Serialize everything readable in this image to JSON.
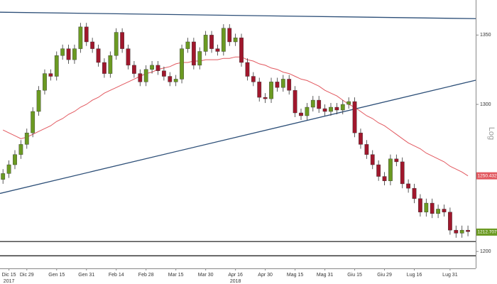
{
  "chart_data": {
    "type": "candlestick",
    "log_scale": true,
    "ylim": [
      1189,
      1376
    ],
    "yticks": [
      1200,
      1300,
      1350
    ],
    "axis_label": "Log",
    "up_color": "#6b9a22",
    "down_color": "#a0172c",
    "categories": [
      null,
      "Dic 15",
      null,
      null,
      "Dic 29",
      null,
      null,
      null,
      null,
      "Gen 15",
      null,
      null,
      null,
      null,
      "Gen 31",
      null,
      null,
      null,
      null,
      "Feb 14",
      null,
      null,
      null,
      null,
      "Feb 28",
      null,
      null,
      null,
      null,
      "Mar 15",
      null,
      null,
      null,
      null,
      "Mar 30",
      null,
      null,
      null,
      null,
      "Apr 16",
      null,
      null,
      null,
      null,
      "Apr 30",
      null,
      null,
      null,
      null,
      "Mag 15",
      null,
      null,
      null,
      null,
      "Mag 31",
      null,
      null,
      null,
      null,
      "Giu 15",
      null,
      null,
      null,
      null,
      "Giu 29",
      null,
      null,
      null,
      null,
      "Lug 16",
      null,
      null,
      null,
      null,
      null,
      "Lug 31",
      null,
      null,
      null
    ],
    "years": [
      null,
      "2017",
      null,
      null,
      null,
      null,
      null,
      null,
      null,
      null,
      null,
      null,
      null,
      null,
      null,
      null,
      null,
      null,
      null,
      null,
      null,
      null,
      null,
      null,
      null,
      null,
      null,
      null,
      null,
      null,
      null,
      null,
      null,
      null,
      null,
      null,
      null,
      null,
      null,
      "2018",
      null,
      null,
      null,
      null,
      null,
      null,
      null,
      null,
      null,
      null,
      null,
      null,
      null,
      null,
      null,
      null,
      null,
      null,
      null,
      null,
      null,
      null,
      null,
      null,
      null,
      null,
      null,
      null,
      null,
      null,
      null,
      null,
      null,
      null,
      null,
      null,
      null,
      null,
      null
    ],
    "open": [
      1248,
      1252,
      1258,
      1265,
      1272,
      1280,
      1295,
      1310,
      1322,
      1320,
      1335,
      1340,
      1332,
      1340,
      1356,
      1345,
      1340,
      1330,
      1322,
      1335,
      1352,
      1340,
      1328,
      1322,
      1316,
      1325,
      1328,
      1324,
      1320,
      1316,
      1318,
      1340,
      1345,
      1328,
      1338,
      1350,
      1340,
      1338,
      1355,
      1345,
      1348,
      1330,
      1320,
      1316,
      1305,
      1304,
      1316,
      1312,
      1318,
      1310,
      1294,
      1292,
      1298,
      1303,
      1297,
      1295,
      1298,
      1296,
      1300,
      1302,
      1280,
      1272,
      1265,
      1258,
      1250,
      1247,
      1262,
      1260,
      1245,
      1242,
      1235,
      1226,
      1232,
      1225,
      1228,
      1226,
      1214,
      1212,
      1214
    ],
    "high": [
      1255,
      1261,
      1268,
      1275,
      1283,
      1298,
      1313,
      1325,
      1325,
      1338,
      1343,
      1343,
      1343,
      1359,
      1359,
      1348,
      1343,
      1333,
      1338,
      1355,
      1355,
      1343,
      1331,
      1325,
      1328,
      1331,
      1331,
      1327,
      1323,
      1321,
      1343,
      1348,
      1348,
      1341,
      1353,
      1353,
      1343,
      1358,
      1358,
      1351,
      1351,
      1333,
      1323,
      1319,
      1308,
      1319,
      1319,
      1321,
      1321,
      1313,
      1297,
      1301,
      1306,
      1306,
      1300,
      1301,
      1301,
      1303,
      1305,
      1305,
      1283,
      1275,
      1268,
      1261,
      1253,
      1265,
      1265,
      1263,
      1248,
      1245,
      1238,
      1235,
      1235,
      1231,
      1231,
      1229,
      1217,
      1217,
      1217
    ],
    "low": [
      1245,
      1249,
      1255,
      1262,
      1269,
      1277,
      1292,
      1307,
      1317,
      1317,
      1332,
      1329,
      1329,
      1337,
      1342,
      1337,
      1327,
      1319,
      1319,
      1332,
      1337,
      1325,
      1319,
      1313,
      1313,
      1322,
      1321,
      1317,
      1313,
      1313,
      1315,
      1337,
      1325,
      1325,
      1335,
      1337,
      1335,
      1335,
      1342,
      1342,
      1327,
      1317,
      1313,
      1302,
      1301,
      1301,
      1309,
      1309,
      1307,
      1291,
      1289,
      1289,
      1295,
      1294,
      1292,
      1292,
      1293,
      1293,
      1297,
      1277,
      1269,
      1262,
      1255,
      1247,
      1244,
      1244,
      1257,
      1242,
      1239,
      1232,
      1223,
      1223,
      1222,
      1222,
      1223,
      1211,
      1209,
      1209,
      1210
    ],
    "close": [
      1252,
      1258,
      1265,
      1272,
      1280,
      1295,
      1310,
      1322,
      1320,
      1335,
      1340,
      1332,
      1340,
      1356,
      1345,
      1340,
      1330,
      1322,
      1335,
      1352,
      1340,
      1328,
      1322,
      1316,
      1325,
      1328,
      1324,
      1320,
      1316,
      1318,
      1340,
      1345,
      1328,
      1338,
      1350,
      1340,
      1338,
      1355,
      1345,
      1348,
      1330,
      1320,
      1316,
      1305,
      1304,
      1316,
      1312,
      1318,
      1310,
      1294,
      1292,
      1298,
      1303,
      1297,
      1295,
      1298,
      1296,
      1300,
      1302,
      1280,
      1272,
      1265,
      1258,
      1250,
      1247,
      1262,
      1260,
      1245,
      1242,
      1235,
      1226,
      1232,
      1225,
      1228,
      1226,
      1214,
      1212,
      1214,
      1213
    ],
    "moving_average": {
      "color": "#e2585f",
      "values": [
        1282,
        1280,
        1278,
        1276,
        1277,
        1279,
        1281,
        1283,
        1285,
        1288,
        1290,
        1293,
        1295,
        1298,
        1300,
        1303,
        1305,
        1308,
        1310,
        1312,
        1314,
        1316,
        1318,
        1320,
        1322,
        1323,
        1325,
        1326,
        1327,
        1329,
        1330,
        1330,
        1331,
        1331,
        1332,
        1332,
        1332,
        1333,
        1333,
        1334,
        1334,
        1332,
        1331,
        1329,
        1328,
        1326,
        1325,
        1323,
        1322,
        1320,
        1318,
        1317,
        1315,
        1313,
        1310,
        1308,
        1306,
        1303,
        1300,
        1298,
        1295,
        1292,
        1290,
        1287,
        1285,
        1282,
        1279,
        1276,
        1273,
        1271,
        1269,
        1266,
        1264,
        1262,
        1260,
        1257,
        1255,
        1253,
        1250.4
      ]
    },
    "trendlines": [
      {
        "color": "#2d4f78",
        "values": [
          1366.9,
          1362.1
        ]
      },
      {
        "color": "#2d4f78",
        "values": [
          1238.5,
          1317.2
        ]
      }
    ],
    "hlines": [
      {
        "color": "#111111",
        "value": 1206.5
      },
      {
        "color": "#111111",
        "value": 1197.2
      }
    ],
    "price_labels": [
      {
        "label": "1250.4327",
        "value": 1250.4327,
        "color": "#e2585f"
      },
      {
        "label": "1212.7075",
        "value": 1212.7075,
        "color": "#6b9a22"
      }
    ]
  }
}
